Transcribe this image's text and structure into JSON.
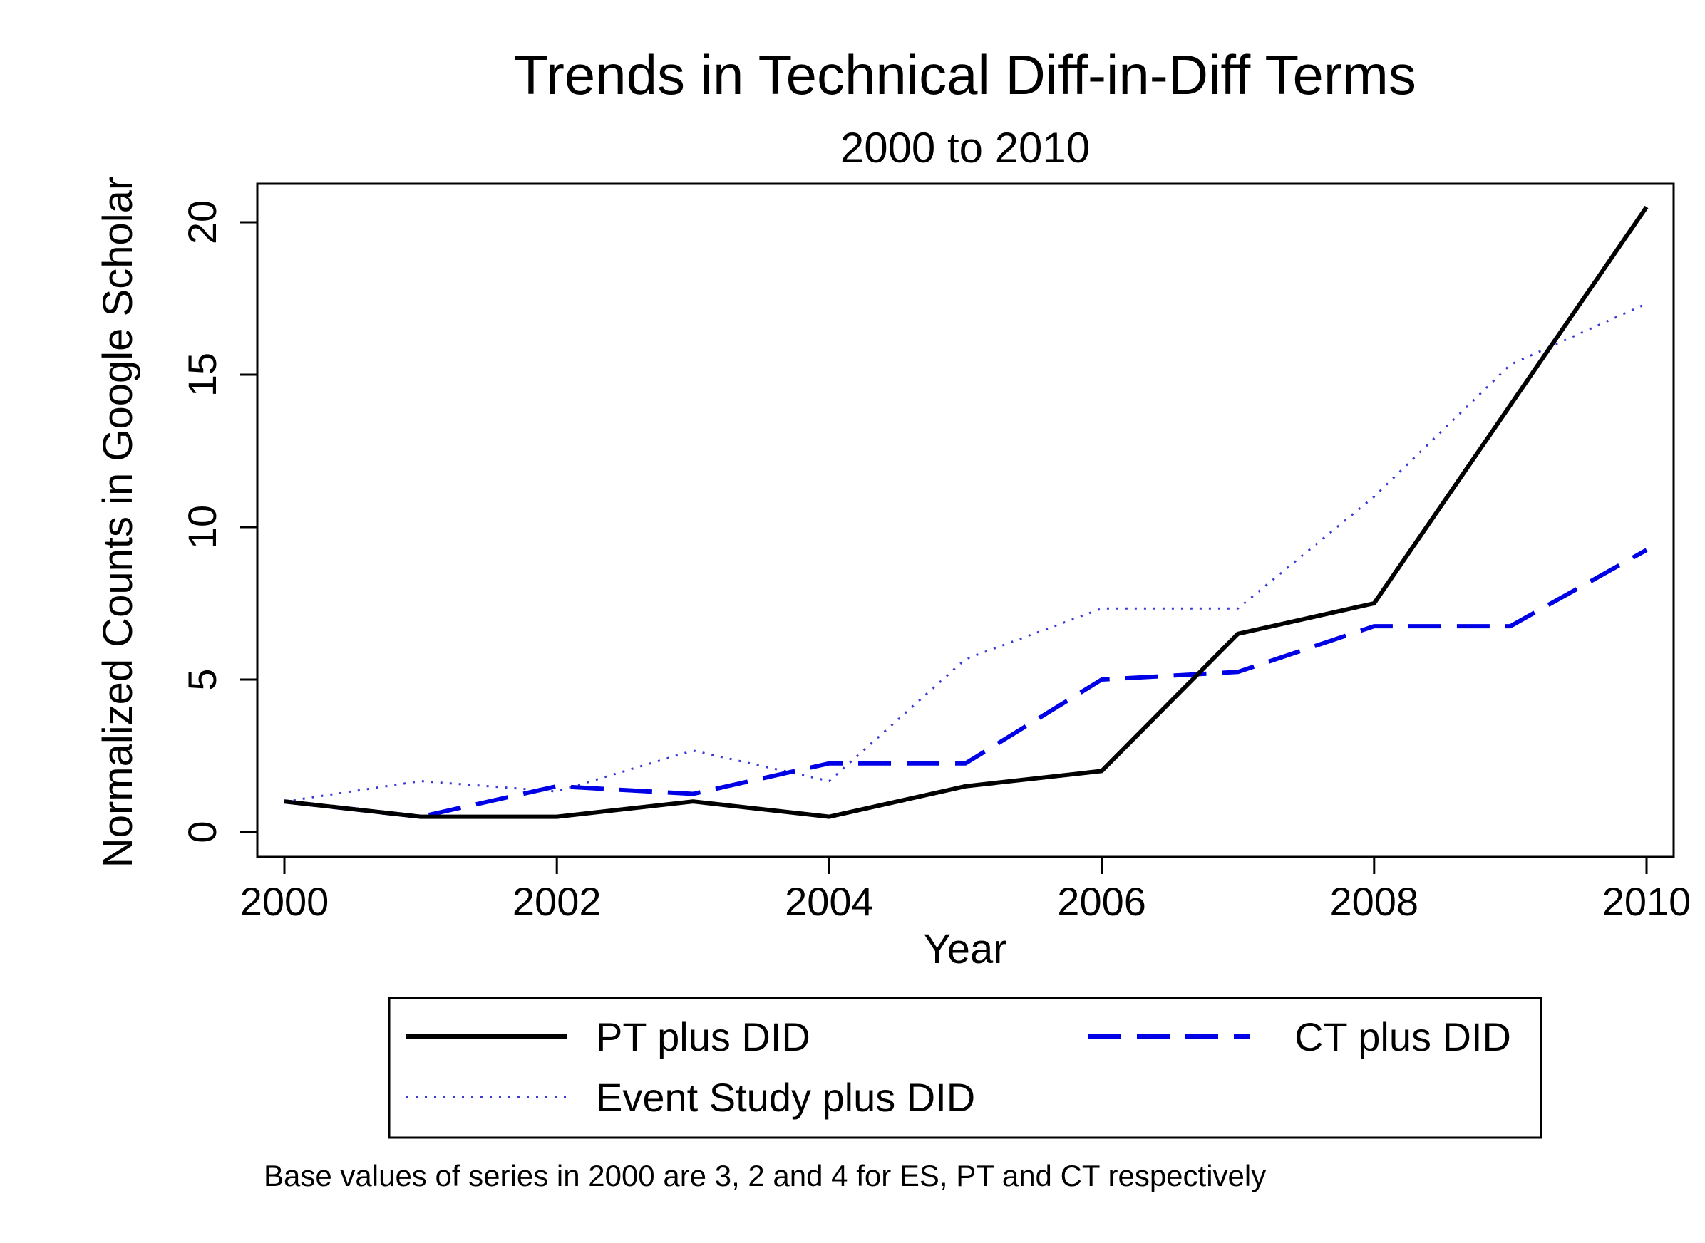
{
  "chart_data": {
    "type": "line",
    "title": "Trends in Technical Diff-in-Diff Terms",
    "subtitle": "2000 to 2010",
    "xlabel": "Year",
    "ylabel": "Normalized Counts in Google Scholar",
    "note": "Base values of series in 2000 are 3, 2 and 4 for ES, PT and CT respectively",
    "x": [
      2000,
      2001,
      2002,
      2003,
      2004,
      2005,
      2006,
      2007,
      2008,
      2009,
      2010
    ],
    "xlim": [
      2000,
      2010
    ],
    "ylim": [
      0,
      20
    ],
    "xticks": [
      2000,
      2002,
      2004,
      2006,
      2008,
      2010
    ],
    "yticks": [
      0,
      5,
      10,
      15,
      20
    ],
    "grid": false,
    "legend_position": "bottom",
    "series": [
      {
        "name": "PT plus DID",
        "color": "#000000",
        "style": "solid",
        "values": [
          1,
          0.5,
          0.5,
          1,
          0.5,
          1.5,
          2,
          6.5,
          7.5,
          14,
          20.5
        ]
      },
      {
        "name": "CT plus DID",
        "color": "#0000e6",
        "style": "dashed",
        "values": [
          1,
          0.5,
          1.5,
          1.25,
          2.25,
          2.25,
          5,
          5.25,
          6.75,
          6.75,
          9.25
        ]
      },
      {
        "name": "Event Study plus DID",
        "color": "#3a3ad8",
        "style": "dotted",
        "values": [
          1,
          1.67,
          1.33,
          2.67,
          1.67,
          5.67,
          7.33,
          7.33,
          11,
          15.33,
          17.33
        ]
      }
    ]
  }
}
